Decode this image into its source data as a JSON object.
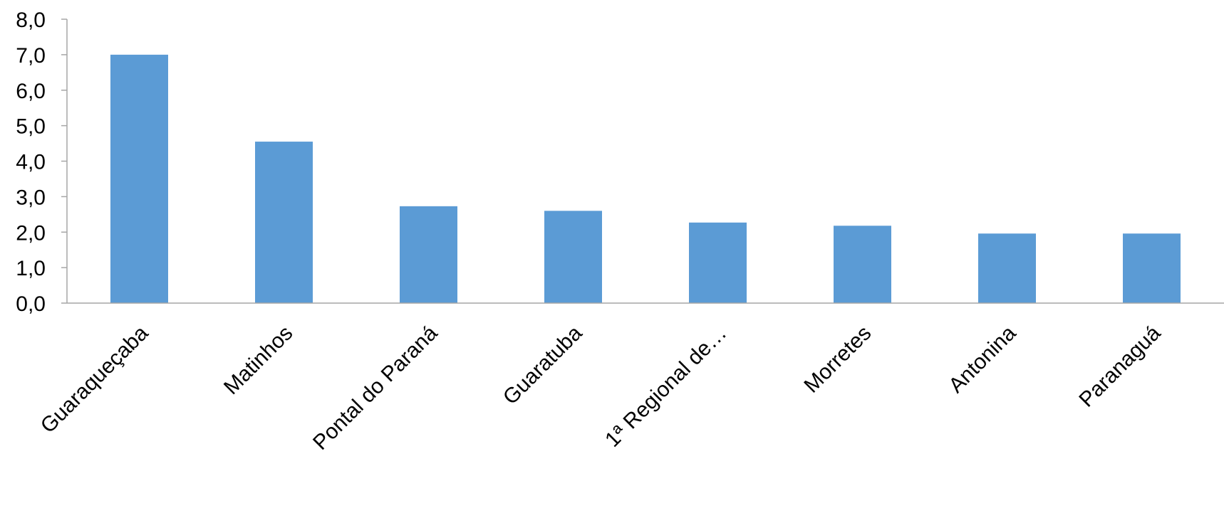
{
  "chart_data": {
    "type": "bar",
    "title": "",
    "xlabel": "",
    "ylabel": "",
    "categories": [
      "Guaraqueçaba",
      "Matinhos",
      "Pontal do Paraná",
      "Guaratuba",
      "1ª Regional de…",
      "Morretes",
      "Antonina",
      "Paranaguá"
    ],
    "values": [
      7.0,
      4.55,
      2.73,
      2.6,
      2.27,
      2.18,
      1.96,
      1.96
    ],
    "ylim": [
      0,
      8
    ],
    "yticks": [
      "0,0",
      "1,0",
      "2,0",
      "3,0",
      "4,0",
      "5,0",
      "6,0",
      "7,0",
      "8,0"
    ],
    "grid": false,
    "legend": "none",
    "bar_color": "#5b9bd5",
    "axis_color": "#a6a6a6"
  }
}
